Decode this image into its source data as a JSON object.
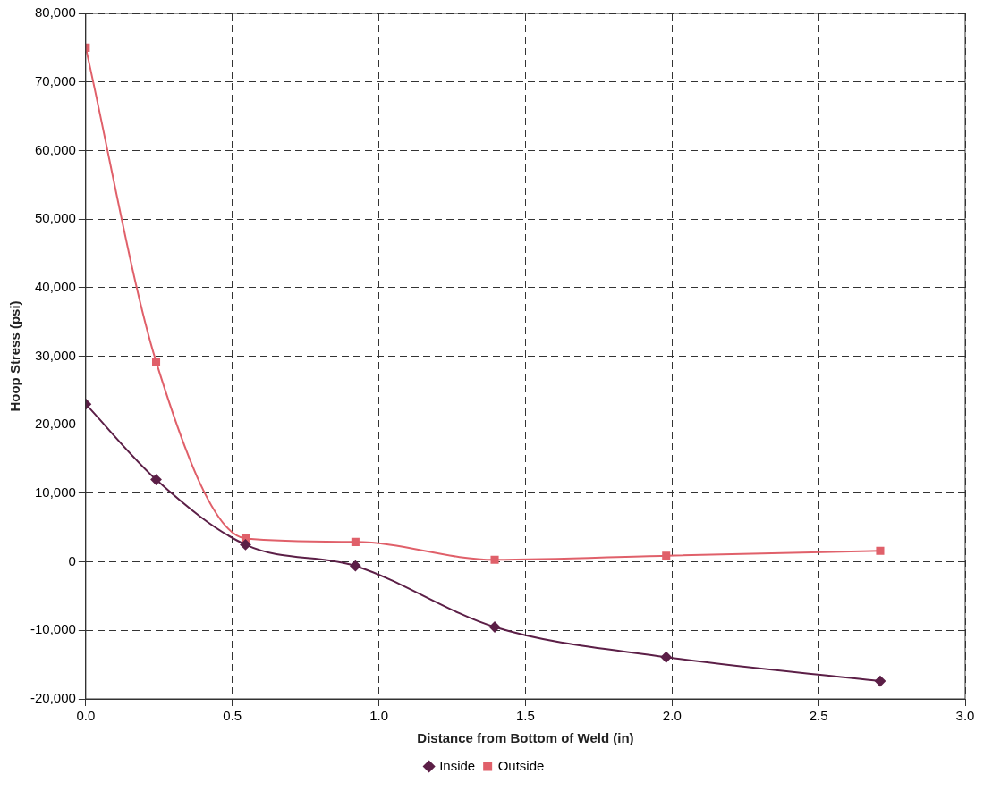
{
  "chart_data": {
    "type": "line",
    "xlabel": "Distance from Bottom of Weld (in)",
    "ylabel": "Hoop Stress (psi)",
    "x": [
      0,
      0.24,
      0.545,
      0.92,
      1.395,
      1.98,
      2.71
    ],
    "series": [
      {
        "name": "Inside",
        "color": "#5c1f47",
        "marker": "diamond",
        "values": [
          23000,
          12000,
          2500,
          -600,
          -9500,
          -13900,
          -17400
        ]
      },
      {
        "name": "Outside",
        "color": "#e0606a",
        "marker": "square",
        "values": [
          75000,
          29200,
          3400,
          2900,
          300,
          900,
          1600
        ]
      }
    ],
    "xlim": [
      0,
      3
    ],
    "xticks": [
      {
        "value": 0,
        "label": "0.0"
      },
      {
        "value": 0.5,
        "label": "0.5"
      },
      {
        "value": 1,
        "label": "1.0"
      },
      {
        "value": 1.5,
        "label": "1.5"
      },
      {
        "value": 2,
        "label": "2.0"
      },
      {
        "value": 2.5,
        "label": "2.5"
      },
      {
        "value": 3,
        "label": "3.0"
      }
    ],
    "ylim": [
      -20000,
      80000
    ],
    "yticks": [
      {
        "value": -20000,
        "label": "-20,000"
      },
      {
        "value": -10000,
        "label": "-10,000"
      },
      {
        "value": 0,
        "label": "0"
      },
      {
        "value": 10000,
        "label": "10,000"
      },
      {
        "value": 20000,
        "label": "20,000"
      },
      {
        "value": 30000,
        "label": "30,000"
      },
      {
        "value": 40000,
        "label": "40,000"
      },
      {
        "value": 50000,
        "label": "50,000"
      },
      {
        "value": 60000,
        "label": "60,000"
      },
      {
        "value": 70000,
        "label": "70,000"
      },
      {
        "value": 80000,
        "label": "80,000"
      }
    ],
    "grid": true,
    "legend": "bottom",
    "line_style": "solid"
  }
}
